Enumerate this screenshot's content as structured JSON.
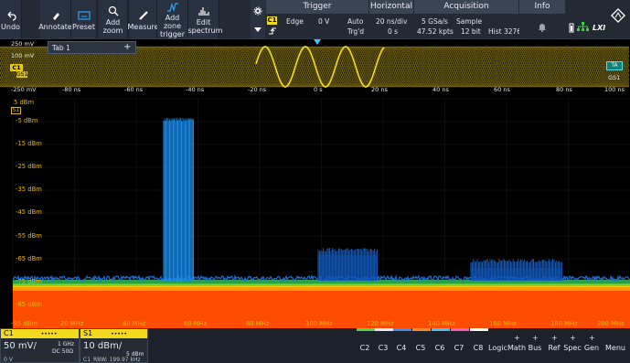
{
  "toolbar": {
    "undo": "Undo",
    "annotate": "Annotate",
    "preset": "Preset",
    "add_zoom": "Add zoom",
    "measure": "Measure",
    "add_zone_trigger": "Add zone trigger",
    "edit_spectrum": "Edit spectrum"
  },
  "trigger": {
    "header": "Trigger",
    "channel": "C1",
    "type": "Edge",
    "level": "0 V",
    "mode": "Auto",
    "state": "Trg'd"
  },
  "horizontal": {
    "header": "Horizontal",
    "scale": "20 ns/div",
    "position": "0 s"
  },
  "acquisition": {
    "header": "Acquisition",
    "sample_rate": "5 GSa/s",
    "record_length": "47.52 kpts",
    "mode": "Sample",
    "resolution": "12 bit",
    "history": "Hist 32767"
  },
  "info": {
    "header": "Info",
    "lxi": "LXI"
  },
  "overview": {
    "tab_label": "Tab 1",
    "tab_add": "+",
    "y_labels": [
      "250 mV",
      "100 mV",
      "-250 mV",
      "-250 mV"
    ],
    "x_labels": [
      "-80 ns",
      "-60 ns",
      "-40 ns",
      "-20 ns",
      "0 s",
      "20 ns",
      "40 ns",
      "60 ns",
      "80 ns",
      "100 ns"
    ],
    "ch_marker": "C1",
    "gs_marker": "GS1",
    "ta_marker": "TA",
    "gs_right": "GS1"
  },
  "spectrum": {
    "ref_label": "5 dBm",
    "s1_tag": "S1",
    "y_labels": [
      "-5 dBm",
      "-15 dBm",
      "-25 dBm",
      "-35 dBm",
      "-45 dBm",
      "-55 dBm",
      "-65 dBm",
      "-75 dBm",
      "-85 dBm",
      "-95 dBm"
    ],
    "x_labels": [
      "20 MHz",
      "40 MHz",
      "60 MHz",
      "80 MHz",
      "100 MHz",
      "120 MHz",
      "140 MHz",
      "160 MHz",
      "180 MHz",
      "200 MHz"
    ]
  },
  "bottom": {
    "c1": {
      "name": "C1",
      "dots": "•••••",
      "scale": "50 mV/",
      "bw": "1 GHz",
      "coupling": "DC 50Ω",
      "offset": "0 V"
    },
    "s1": {
      "name": "S1",
      "dots": "•••••",
      "scale": "10 dBm/",
      "ref": "5 dBm",
      "src": "C1",
      "rbw": "RBW: 199.97 kHz"
    },
    "buttons": [
      "C2",
      "C3",
      "C4",
      "C5",
      "C6",
      "C7",
      "C8",
      "Logic",
      "Math",
      "Bus",
      "Ref",
      "Spec",
      "Gen",
      "Menu"
    ],
    "plus": "+"
  },
  "colors": {
    "c1": "#f4da1e",
    "c2": "#4cd94c",
    "c3": "#e8f0ff",
    "c4": "#3f8cff",
    "c5": "#ff8c2a",
    "c6": "#3cc8ff",
    "c7": "#ff5cc8",
    "c8": "#ffffff",
    "accent": "#2aa6ff",
    "toolbar": "#242a33"
  }
}
